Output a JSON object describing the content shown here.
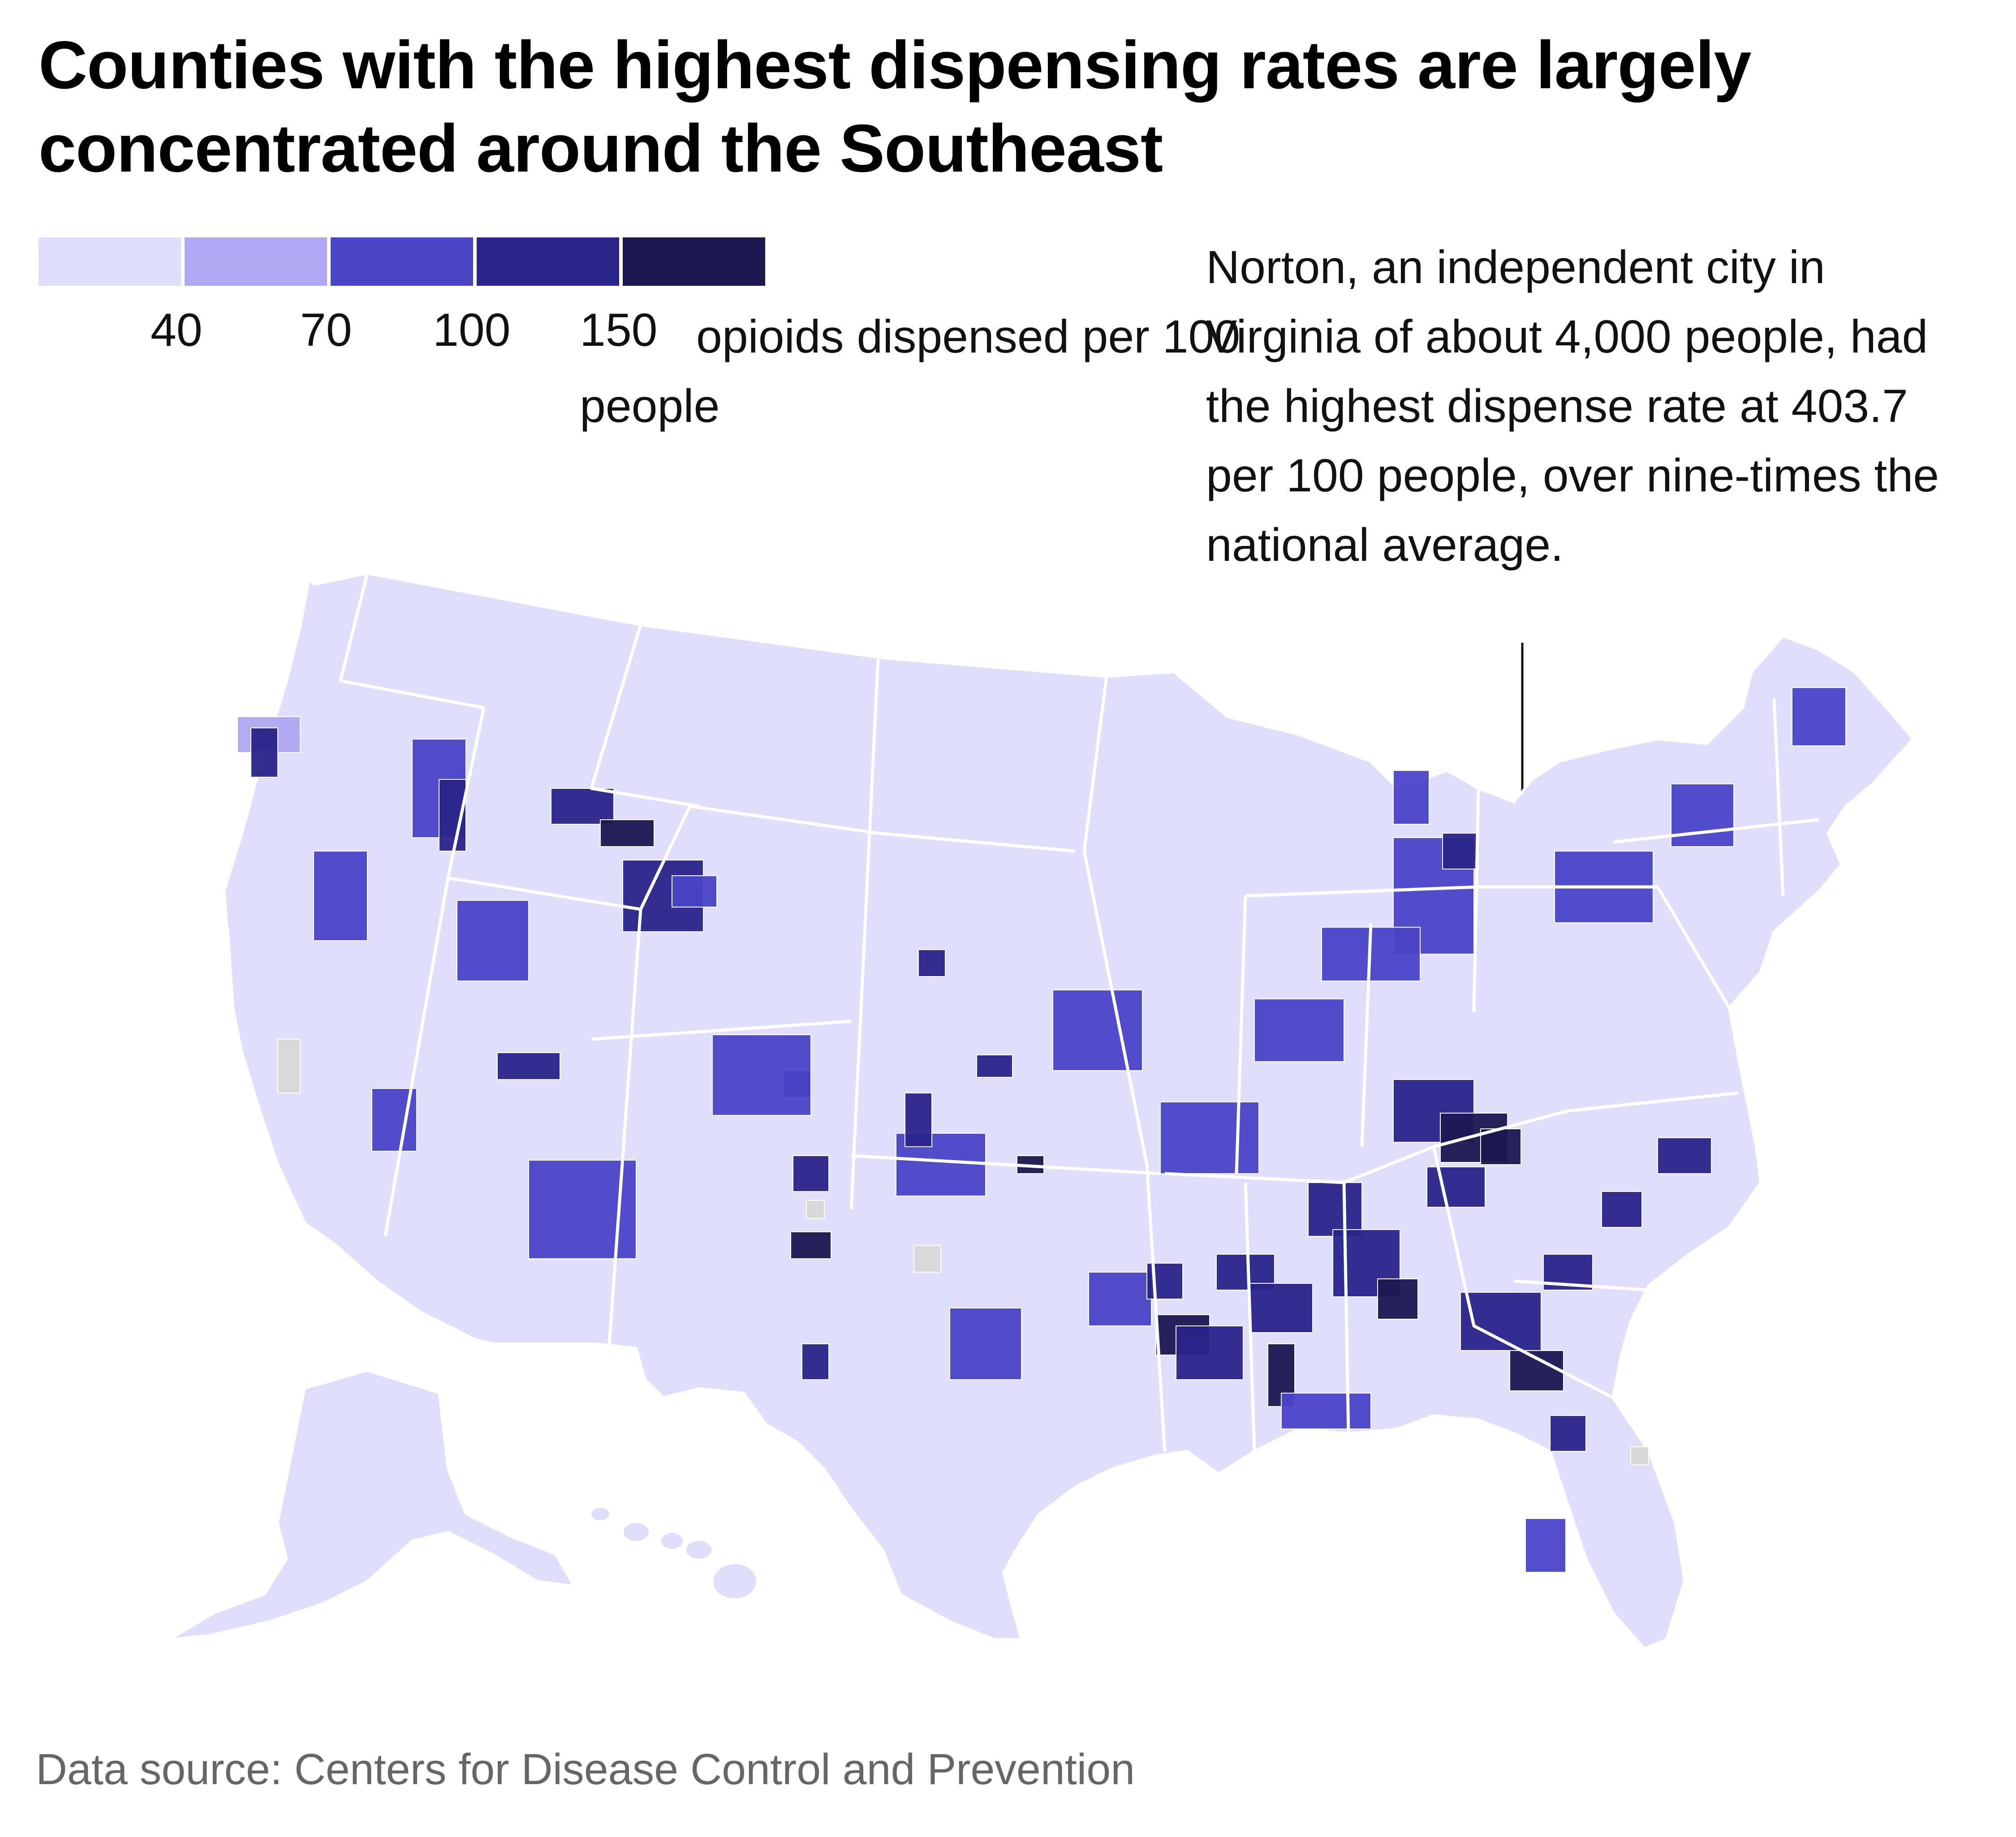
{
  "title": "Counties with the highest dispensing rates are largely concentrated around the Southeast",
  "legend": {
    "bins": [
      {
        "label": "",
        "min": 0,
        "max": 40,
        "color": "#e0defb"
      },
      {
        "label": "40",
        "min": 40,
        "max": 70,
        "color": "#aea9f2"
      },
      {
        "label": "70",
        "min": 70,
        "max": 100,
        "color": "#4a45c7"
      },
      {
        "label": "100",
        "min": 100,
        "max": 150,
        "color": "#29248a"
      },
      {
        "label": "150",
        "min": 150,
        "max": null,
        "color": "#1b1852"
      }
    ],
    "no_data_color": "#d9d9d9",
    "unit_label": "opioids dispensed per 100 people"
  },
  "annotation": {
    "text": "Norton, an independent city in Virginia of about 4,000 people, had the highest dispense rate at 403.7 per 100 people, over nine-times the national average.",
    "place": "Norton, Virginia",
    "value": 403.7
  },
  "source": "Data source: Centers for Disease Control and Prevention",
  "colors": {
    "state_border": "#ffffff",
    "county_border": "#ffffff"
  }
}
